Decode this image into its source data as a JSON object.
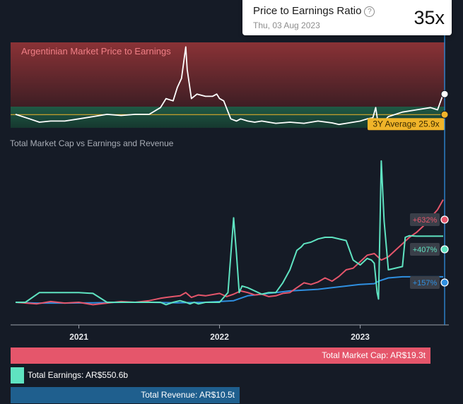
{
  "tooltip": {
    "title": "Price to Earnings Ratio",
    "help_icon": "question-circle-icon",
    "date": "Thu, 03 Aug 2023",
    "value": "35x"
  },
  "colors": {
    "background": "#151b26",
    "pe_line": "#ffffff",
    "average_line": "#f0b429",
    "market_cap": "#e5566b",
    "earnings": "#5fe3c1",
    "revenue": "#2f8fe0",
    "cursor": "#2f8fe0",
    "zone_above": "#7e2f33",
    "zone_below": "#1e4a3c"
  },
  "chart_data": [
    {
      "type": "line",
      "title": "Argentinian Market Price to Earnings",
      "average_label": "3Y Average 25.9x",
      "average": 25.9,
      "x_range": [
        2020.54,
        2023.6
      ],
      "ylim": [
        20,
        58
      ],
      "series": [
        {
          "x": [
            2020.55,
            2020.65,
            2020.72,
            2020.8,
            2020.9,
            2021.0,
            2021.1,
            2021.2,
            2021.3,
            2021.4,
            2021.5,
            2021.58,
            2021.62,
            2021.67,
            2021.7,
            2021.73,
            2021.76,
            2021.77,
            2021.8,
            2021.84,
            2021.9,
            2021.95,
            2021.98,
            2022.0,
            2022.03,
            2022.08,
            2022.12,
            2022.15,
            2022.2,
            2022.25,
            2022.3,
            2022.4,
            2022.5,
            2022.6,
            2022.7,
            2022.8,
            2022.85,
            2022.9,
            2022.95,
            2023.0,
            2023.05,
            2023.09,
            2023.11,
            2023.13,
            2023.2,
            2023.3,
            2023.4,
            2023.5,
            2023.55,
            2023.59
          ],
          "y": [
            26,
            24,
            22.5,
            23,
            23,
            24,
            25,
            26,
            25.5,
            26,
            26,
            29,
            33,
            32,
            38,
            42,
            56,
            46,
            33,
            35,
            34,
            34,
            35,
            33,
            32,
            24,
            23,
            24,
            23,
            22.5,
            23,
            22,
            22.5,
            22,
            23,
            22.2,
            21.5,
            22,
            22.5,
            23,
            24,
            24.5,
            29,
            20.5,
            25,
            27,
            28,
            29,
            28,
            35
          ]
        }
      ]
    },
    {
      "type": "line",
      "title": "Total Market Cap vs Earnings and Revenue",
      "x_range": [
        2020.54,
        2023.6
      ],
      "x_ticks": [
        "2021",
        "2022",
        "2023"
      ],
      "ylim": [
        -20,
        1000
      ],
      "series": [
        {
          "name": "Total Market Cap",
          "end_label": "+632%",
          "x": [
            2020.55,
            2020.7,
            2020.8,
            2020.9,
            2021.0,
            2021.1,
            2021.2,
            2021.3,
            2021.4,
            2021.5,
            2021.58,
            2021.62,
            2021.67,
            2021.72,
            2021.76,
            2021.8,
            2021.85,
            2021.9,
            2022.0,
            2022.05,
            2022.1,
            2022.15,
            2022.2,
            2022.25,
            2022.3,
            2022.35,
            2022.4,
            2022.45,
            2022.5,
            2022.55,
            2022.6,
            2022.65,
            2022.7,
            2022.75,
            2022.8,
            2022.85,
            2022.9,
            2022.95,
            2023.0,
            2023.05,
            2023.1,
            2023.15,
            2023.2,
            2023.25,
            2023.3,
            2023.35,
            2023.4,
            2023.45,
            2023.5,
            2023.55,
            2023.59
          ],
          "y": [
            0,
            -10,
            5,
            -5,
            0,
            -15,
            -5,
            5,
            0,
            10,
            25,
            30,
            35,
            40,
            60,
            30,
            45,
            40,
            55,
            35,
            50,
            70,
            60,
            45,
            50,
            35,
            40,
            55,
            60,
            90,
            120,
            110,
            125,
            150,
            130,
            160,
            200,
            210,
            250,
            290,
            300,
            260,
            280,
            320,
            360,
            400,
            430,
            470,
            520,
            570,
            632
          ]
        },
        {
          "name": "Total Earnings",
          "end_label": "+407%",
          "x": [
            2020.55,
            2020.62,
            2020.72,
            2020.9,
            2021.0,
            2021.1,
            2021.2,
            2021.3,
            2021.4,
            2021.5,
            2021.58,
            2021.62,
            2021.67,
            2021.72,
            2021.76,
            2021.79,
            2021.82,
            2021.85,
            2021.9,
            2022.0,
            2022.06,
            2022.1,
            2022.12,
            2022.14,
            2022.16,
            2022.2,
            2022.3,
            2022.35,
            2022.4,
            2022.45,
            2022.5,
            2022.55,
            2022.58,
            2022.6,
            2022.65,
            2022.7,
            2022.75,
            2022.8,
            2022.9,
            2022.95,
            2023.0,
            2023.05,
            2023.08,
            2023.1,
            2023.12,
            2023.13,
            2023.15,
            2023.17,
            2023.2,
            2023.3,
            2023.32,
            2023.35,
            2023.4,
            2023.45,
            2023.5,
            2023.55,
            2023.59
          ],
          "y": [
            0,
            0,
            60,
            60,
            60,
            55,
            0,
            0,
            0,
            0,
            0,
            -15,
            0,
            10,
            0,
            -10,
            0,
            -10,
            0,
            0,
            60,
            520,
            300,
            60,
            100,
            90,
            50,
            60,
            60,
            120,
            200,
            320,
            340,
            360,
            370,
            390,
            400,
            400,
            380,
            260,
            230,
            270,
            260,
            240,
            60,
            20,
            870,
            500,
            200,
            220,
            400,
            410,
            407,
            407,
            407,
            407,
            407
          ]
        },
        {
          "name": "Total Revenue",
          "end_label": "+157%",
          "x": [
            2020.55,
            2020.7,
            2020.9,
            2021.1,
            2021.3,
            2021.5,
            2021.7,
            2021.9,
            2022.0,
            2022.1,
            2022.2,
            2022.3,
            2022.4,
            2022.5,
            2022.6,
            2022.7,
            2022.8,
            2022.9,
            2023.0,
            2023.1,
            2023.13,
            2023.2,
            2023.3,
            2023.4,
            2023.5,
            2023.59
          ],
          "y": [
            0,
            -5,
            -5,
            -3,
            0,
            0,
            -3,
            0,
            5,
            10,
            40,
            50,
            60,
            70,
            75,
            80,
            90,
            100,
            110,
            115,
            130,
            150,
            157,
            157,
            157,
            157
          ]
        }
      ]
    }
  ],
  "legend_bars": {
    "market_cap": "Total Market Cap: AR$19.3t",
    "earnings": "Total Earnings: AR$550.6b",
    "revenue": "Total Revenue: AR$10.5t"
  }
}
